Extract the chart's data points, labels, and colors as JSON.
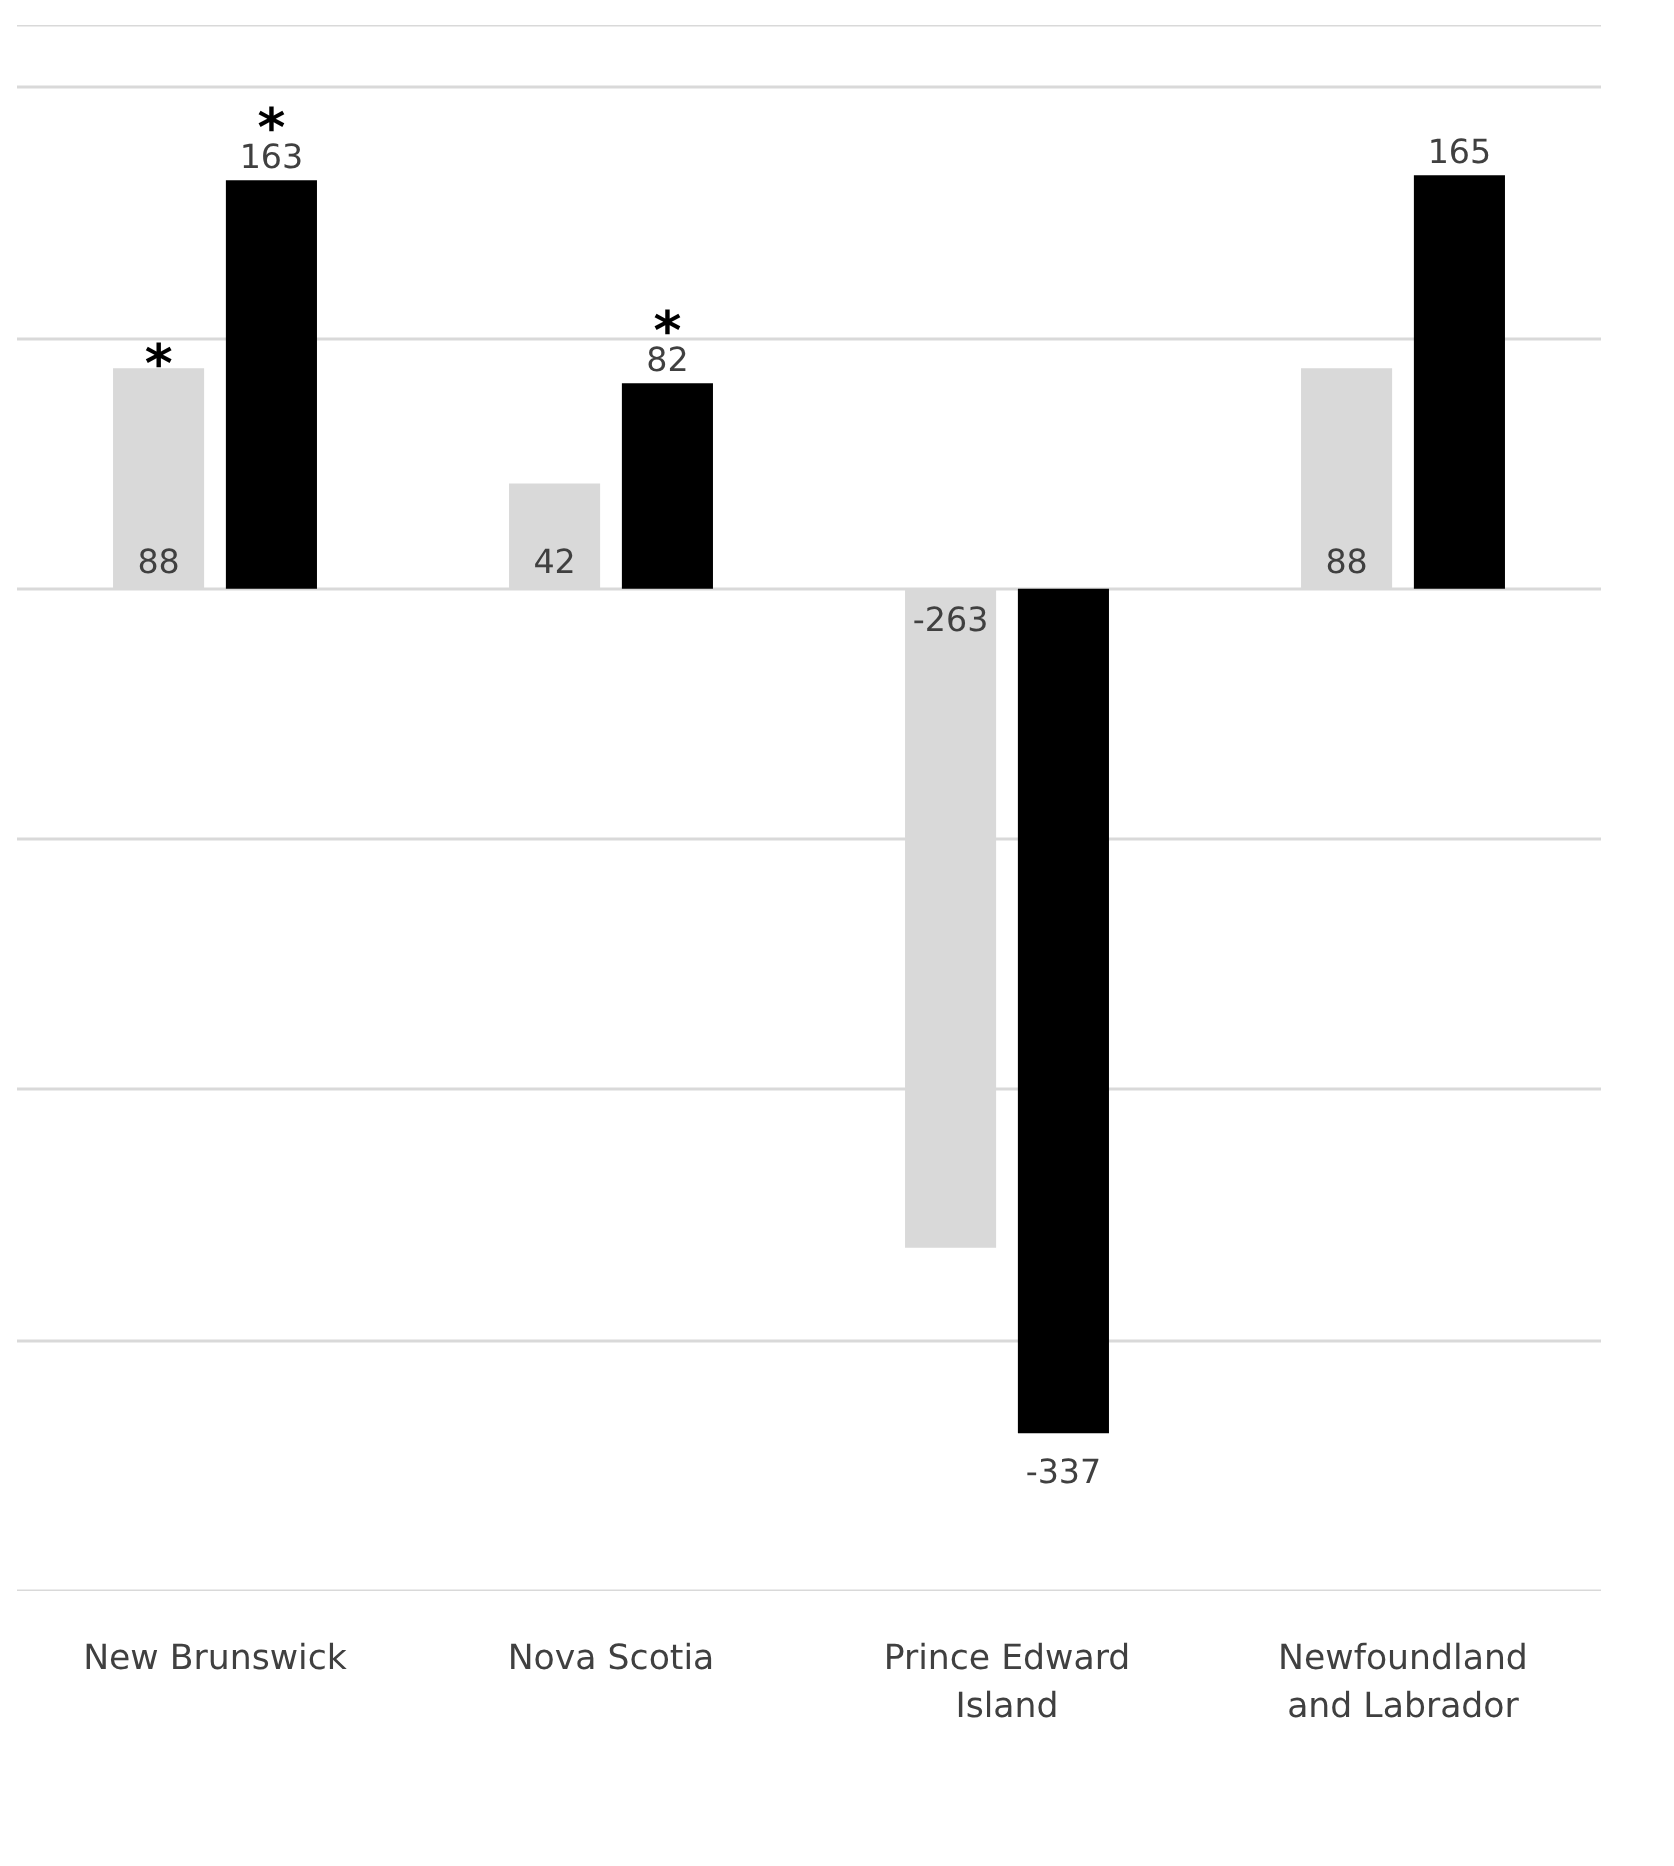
{
  "chart_data": {
    "type": "bar",
    "categories": [
      "New Brunswick",
      "Nova Scotia",
      "Prince Edward\nIsland",
      "Newfoundland\nand Labrador"
    ],
    "series": [
      {
        "color": "#d9d9d9",
        "values": [
          88,
          42,
          -263,
          88
        ]
      },
      {
        "color": "#000000",
        "values": [
          163,
          82,
          -337,
          165
        ]
      }
    ],
    "data_labels": true,
    "annotations": [
      "*",
      "*",
      "*"
    ],
    "yticks": [
      {
        "value": -300,
        "label": null
      },
      {
        "value": -200,
        "label": null
      },
      {
        "value": -100,
        "label": null
      },
      {
        "value": 0,
        "label": null
      },
      {
        "value": 100,
        "label": null
      },
      {
        "value": 200,
        "label": null
      }
    ],
    "grid": "y",
    "tick_labels": "x"
  }
}
